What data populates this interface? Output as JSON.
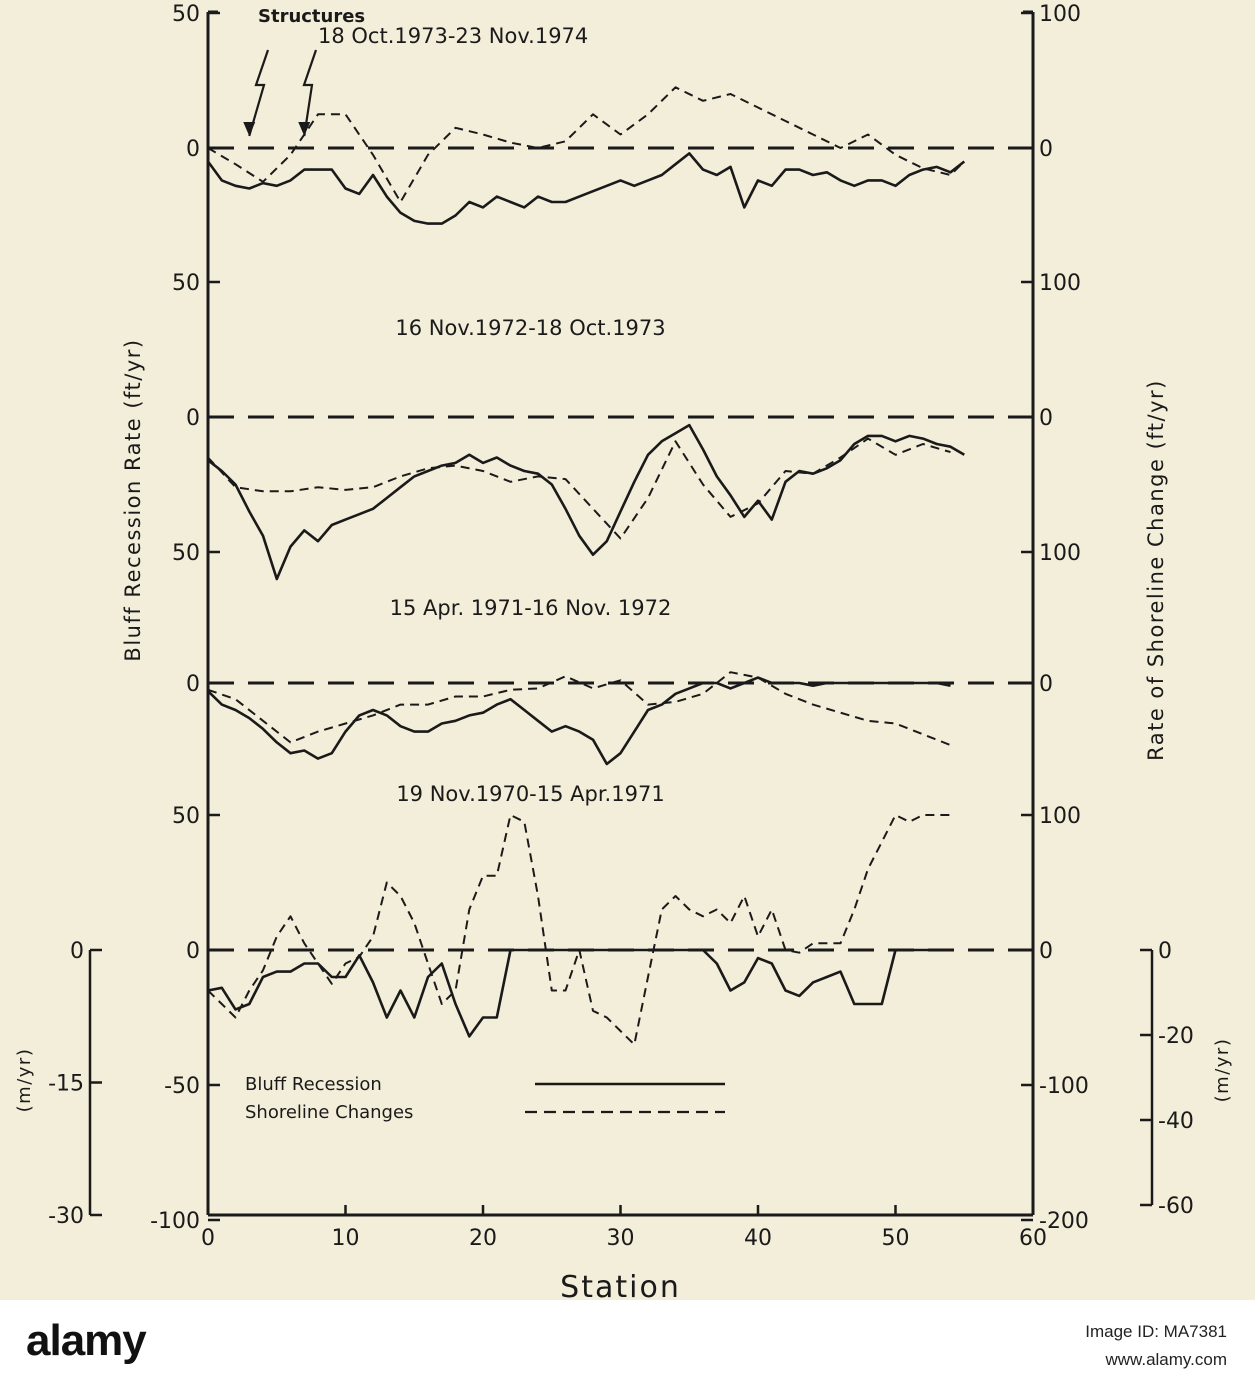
{
  "chart_data": {
    "type": "line",
    "xlabel": "Station",
    "ylabel_left": "Bluff Recession Rate (ft/yr)",
    "ylabel_right": "Rate of Shoreline Change (ft/yr)",
    "ylabel_left_metric": "(m/yr)",
    "ylabel_right_metric": "(m/yr)",
    "xlim": [
      0,
      60
    ],
    "x_ticks": [
      "0",
      "10",
      "20",
      "30",
      "40",
      "50",
      "60"
    ],
    "structures_label": "Structures",
    "structures_stations": [
      3,
      7
    ],
    "legend": {
      "bluff": "Bluff Recession",
      "shoreline": "Shoreline Changes"
    },
    "left_axis_labels": [
      {
        "text": "50",
        "panel": 0,
        "value": 50
      },
      {
        "text": "0",
        "panel": 0,
        "value": 0
      },
      {
        "text": "50",
        "panel": 1,
        "value": 50
      },
      {
        "text": "0",
        "panel": 1,
        "value": 0
      },
      {
        "text": "50",
        "panel": 1,
        "value": -50
      },
      {
        "text": "0",
        "panel": 2,
        "value": 0
      },
      {
        "text": "50",
        "panel": 3,
        "value": 50
      },
      {
        "text": "0",
        "panel": 3,
        "value": 0
      },
      {
        "text": "-50",
        "panel": 3,
        "value": -50
      },
      {
        "text": "-100",
        "panel": 3,
        "value": -100
      }
    ],
    "right_axis_labels": [
      {
        "text": "100",
        "panel": 0,
        "value": 100
      },
      {
        "text": "0",
        "panel": 0,
        "value": 0
      },
      {
        "text": "100",
        "panel": 1,
        "value": 100
      },
      {
        "text": "0",
        "panel": 1,
        "value": 0
      },
      {
        "text": "100",
        "panel": 1,
        "value": -100
      },
      {
        "text": "0",
        "panel": 2,
        "value": 0
      },
      {
        "text": "100",
        "panel": 3,
        "value": 100
      },
      {
        "text": "0",
        "panel": 3,
        "value": 0
      },
      {
        "text": "-100",
        "panel": 3,
        "value": -100
      },
      {
        "text": "-200",
        "panel": 3,
        "value": -200
      }
    ],
    "metric_left_ticks": [
      "0",
      "-15",
      "-30"
    ],
    "metric_right_ticks": [
      "0",
      "-20",
      "-40",
      "-60"
    ],
    "panels": [
      {
        "label": "18 Oct.1973-23 Nov.1974",
        "series": [
          {
            "name": "Bluff Recession",
            "x": [
              0,
              1,
              2,
              3,
              4,
              5,
              6,
              7,
              8,
              9,
              10,
              11,
              12,
              13,
              14,
              15,
              16,
              17,
              18,
              19,
              20,
              21,
              22,
              23,
              24,
              25,
              26,
              27,
              28,
              29,
              30,
              31,
              32,
              33,
              34,
              35,
              36,
              37,
              38,
              39,
              40,
              41,
              42,
              43,
              44,
              45,
              46,
              47,
              48,
              49,
              50,
              51,
              52,
              53,
              54,
              55
            ],
            "y": [
              -5,
              -12,
              -14,
              -15,
              -13,
              -14,
              -12,
              -8,
              -8,
              -8,
              -15,
              -17,
              -10,
              -18,
              -24,
              -27,
              -28,
              -28,
              -25,
              -20,
              -22,
              -18,
              -20,
              -22,
              -18,
              -20,
              -20,
              -18,
              -16,
              -14,
              -12,
              -14,
              -12,
              -10,
              -6,
              -2,
              -8,
              -10,
              -7,
              -22,
              -12,
              -14,
              -8,
              -8,
              -10,
              -9,
              -12,
              -14,
              -12,
              -12,
              -14,
              -10,
              -8,
              -7,
              -9,
              -5
            ],
            "y_unit": "ft/yr (left axis)"
          },
          {
            "name": "Shoreline Changes",
            "x": [
              0,
              2,
              4,
              6,
              8,
              10,
              12,
              14,
              16,
              18,
              20,
              22,
              24,
              26,
              28,
              30,
              32,
              34,
              36,
              38,
              40,
              42,
              44,
              46,
              48,
              50,
              52,
              54,
              55
            ],
            "y": [
              0,
              -12,
              -25,
              -5,
              25,
              25,
              -5,
              -40,
              -5,
              15,
              10,
              4,
              0,
              5,
              25,
              10,
              25,
              45,
              35,
              40,
              30,
              20,
              10,
              0,
              10,
              -5,
              -15,
              -20,
              -10
            ],
            "y_unit": "ft/yr (right axis)"
          }
        ]
      },
      {
        "label": "16 Nov.1972-18 Oct.1973",
        "series": [
          {
            "name": "Bluff Recession",
            "x": [
              0,
              1,
              2,
              3,
              4,
              5,
              6,
              7,
              8,
              9,
              10,
              11,
              12,
              13,
              14,
              15,
              16,
              17,
              18,
              19,
              20,
              21,
              22,
              23,
              24,
              25,
              26,
              27,
              28,
              29,
              30,
              31,
              32,
              33,
              34,
              35,
              36,
              37,
              38,
              39,
              40,
              41,
              42,
              43,
              44,
              45,
              46,
              47,
              48,
              49,
              50,
              51,
              52,
              53,
              54,
              55
            ],
            "y": [
              -16,
              -20,
              -25,
              -35,
              -44,
              -60,
              -48,
              -42,
              -46,
              -40,
              -38,
              -36,
              -34,
              -30,
              -26,
              -22,
              -20,
              -18,
              -17,
              -14,
              -17,
              -15,
              -18,
              -20,
              -21,
              -25,
              -34,
              -44,
              -51,
              -46,
              -35,
              -24,
              -14,
              -9,
              -6,
              -3,
              -12,
              -22,
              -29,
              -37,
              -31,
              -38,
              -24,
              -20,
              -21,
              -19,
              -16,
              -10,
              -7,
              -7,
              -9,
              -7,
              -8,
              -10,
              -11,
              -14
            ],
            "y_unit": "ft/yr (left axis)"
          },
          {
            "name": "Shoreline Changes",
            "x": [
              0,
              2,
              4,
              6,
              8,
              10,
              12,
              14,
              16,
              18,
              20,
              22,
              24,
              26,
              28,
              30,
              32,
              34,
              36,
              38,
              40,
              42,
              44,
              46,
              48,
              50,
              52,
              54
            ],
            "y": [
              -30,
              -52,
              -55,
              -55,
              -52,
              -54,
              -52,
              -44,
              -38,
              -36,
              -40,
              -48,
              -44,
              -46,
              -68,
              -90,
              -60,
              -18,
              -50,
              -74,
              -64,
              -40,
              -42,
              -30,
              -16,
              -28,
              -20,
              -26
            ],
            "y_unit": "ft/yr (right axis)"
          }
        ]
      },
      {
        "label": "15 Apr. 1971-16 Nov. 1972",
        "series": [
          {
            "name": "Bluff Recession",
            "x": [
              0,
              1,
              2,
              3,
              4,
              5,
              6,
              7,
              8,
              9,
              10,
              11,
              12,
              13,
              14,
              15,
              16,
              17,
              18,
              19,
              20,
              21,
              22,
              23,
              24,
              25,
              26,
              27,
              28,
              29,
              30,
              31,
              32,
              33,
              34,
              35,
              36,
              37,
              38,
              39,
              40,
              41,
              42,
              43,
              44,
              45,
              46,
              47,
              48,
              49,
              50,
              51,
              52,
              53,
              54
            ],
            "y": [
              -3,
              -8,
              -10,
              -13,
              -17,
              -22,
              -26,
              -25,
              -28,
              -26,
              -18,
              -12,
              -10,
              -12,
              -16,
              -18,
              -18,
              -15,
              -14,
              -12,
              -11,
              -8,
              -6,
              -10,
              -14,
              -18,
              -16,
              -18,
              -21,
              -30,
              -26,
              -18,
              -10,
              -8,
              -4,
              -2,
              0,
              0,
              -2,
              0,
              2,
              0,
              0,
              0,
              -1,
              0,
              0,
              0,
              0,
              0,
              0,
              0,
              0,
              0,
              -1
            ],
            "y_unit": "ft/yr (left axis)"
          },
          {
            "name": "Shoreline Changes",
            "x": [
              0,
              2,
              4,
              6,
              8,
              10,
              12,
              14,
              16,
              18,
              20,
              22,
              24,
              26,
              28,
              30,
              32,
              34,
              36,
              38,
              40,
              42,
              44,
              46,
              48,
              50,
              52,
              54
            ],
            "y": [
              -5,
              -12,
              -28,
              -44,
              -36,
              -30,
              -24,
              -16,
              -16,
              -10,
              -10,
              -5,
              -4,
              5,
              -4,
              2,
              -16,
              -14,
              -8,
              8,
              4,
              -8,
              -16,
              -22,
              -28,
              -30,
              -38,
              -46
            ],
            "y_unit": "ft/yr (right axis)"
          }
        ]
      },
      {
        "label": "19 Nov.1970-15 Apr.1971",
        "series": [
          {
            "name": "Bluff Recession",
            "x": [
              0,
              1,
              2,
              3,
              4,
              5,
              6,
              7,
              8,
              9,
              10,
              11,
              12,
              13,
              14,
              15,
              16,
              17,
              18,
              19,
              20,
              21,
              22,
              23,
              24,
              25,
              26,
              27,
              28,
              29,
              30,
              31,
              32,
              33,
              34,
              35,
              36,
              37,
              38,
              39,
              40,
              41,
              42,
              43,
              44,
              45,
              46,
              47,
              48,
              49,
              50,
              51,
              52,
              53,
              54
            ],
            "y": [
              -15,
              -14,
              -22,
              -20,
              -10,
              -8,
              -8,
              -5,
              -5,
              -10,
              -10,
              -2,
              -12,
              -25,
              -15,
              -25,
              -10,
              -5,
              -20,
              -32,
              -25,
              -25,
              0,
              0,
              0,
              0,
              0,
              0,
              0,
              0,
              0,
              0,
              0,
              0,
              0,
              0,
              0,
              -5,
              -15,
              -12,
              -3,
              -5,
              -15,
              -17,
              -12,
              -10,
              -8,
              -20,
              -20,
              -20,
              0,
              0,
              0,
              0,
              0
            ],
            "y_unit": "ft/yr (left axis)"
          },
          {
            "name": "Shoreline Changes",
            "x": [
              0,
              1,
              2,
              3,
              4,
              5,
              6,
              7,
              8,
              9,
              10,
              11,
              12,
              13,
              14,
              15,
              16,
              17,
              18,
              19,
              20,
              21,
              22,
              23,
              24,
              25,
              26,
              27,
              28,
              29,
              30,
              31,
              32,
              33,
              34,
              35,
              36,
              37,
              38,
              39,
              40,
              41,
              42,
              43,
              44,
              45,
              46,
              47,
              48,
              49,
              50,
              51,
              52,
              53,
              54
            ],
            "y": [
              -30,
              -40,
              -50,
              -30,
              -15,
              10,
              25,
              5,
              -10,
              -25,
              -10,
              -5,
              10,
              50,
              40,
              20,
              -10,
              -40,
              -30,
              30,
              55,
              55,
              100,
              95,
              40,
              -30,
              -30,
              0,
              -45,
              -50,
              -60,
              -70,
              -20,
              30,
              40,
              30,
              25,
              30,
              20,
              40,
              10,
              30,
              0,
              -2,
              5,
              5,
              5,
              30,
              60,
              80,
              100,
              95,
              100,
              100,
              100
            ],
            "y_unit": "ft/yr (right axis)"
          }
        ]
      }
    ]
  },
  "footer": {
    "brand": "alamy",
    "image_id": "Image ID: MA7381",
    "url": "www.alamy.com"
  }
}
